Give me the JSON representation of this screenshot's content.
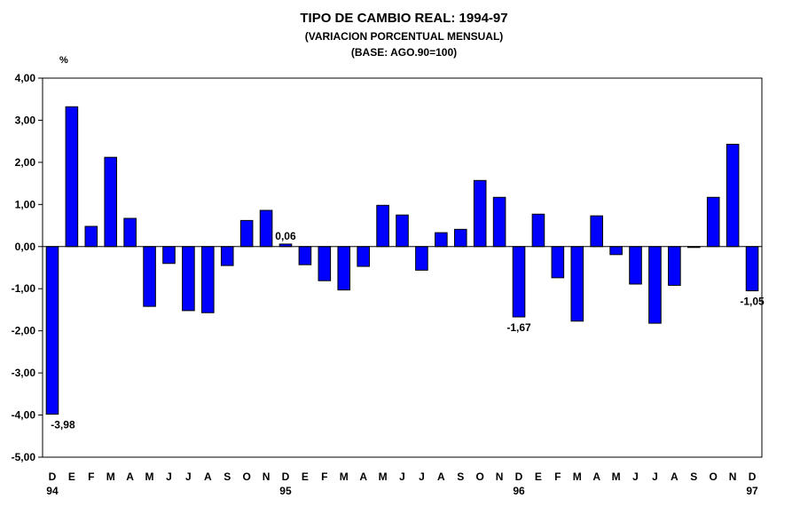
{
  "header": {
    "title": "TIPO DE CAMBIO REAL: 1994-97",
    "subtitle": "(VARIACION PORCENTUAL MENSUAL)",
    "base_note": "(BASE: AGO.90=100)",
    "unit": "%"
  },
  "chart_data": {
    "type": "bar",
    "title": "TIPO DE CAMBIO REAL: 1994-97",
    "subtitle": "(VARIACION PORCENTUAL MENSUAL) (BASE: AGO.90=100)",
    "ylabel": "%",
    "ylim": [
      -5,
      4
    ],
    "yticks": [
      "4,00",
      "3,00",
      "2,00",
      "1,00",
      "0,00",
      "-1,00",
      "-2,00",
      "-3,00",
      "-4,00",
      "-5,00"
    ],
    "ytick_values": [
      4,
      3,
      2,
      1,
      0,
      -1,
      -2,
      -3,
      -4,
      -5
    ],
    "categories": [
      "D",
      "E",
      "F",
      "M",
      "A",
      "M",
      "J",
      "J",
      "A",
      "S",
      "O",
      "N",
      "D",
      "E",
      "F",
      "M",
      "A",
      "M",
      "J",
      "J",
      "A",
      "S",
      "O",
      "N",
      "D",
      "E",
      "F",
      "M",
      "A",
      "M",
      "J",
      "J",
      "A",
      "S",
      "O",
      "N",
      "D"
    ],
    "year_labels": [
      {
        "index": 0,
        "label": "94"
      },
      {
        "index": 12,
        "label": "95"
      },
      {
        "index": 24,
        "label": "96"
      },
      {
        "index": 36,
        "label": "97"
      }
    ],
    "values": [
      -3.98,
      3.32,
      0.48,
      2.12,
      0.67,
      -1.42,
      -0.4,
      -1.52,
      -1.57,
      -0.45,
      0.62,
      0.86,
      0.06,
      -0.43,
      -0.81,
      -1.03,
      -0.47,
      0.98,
      0.75,
      -0.56,
      0.33,
      0.41,
      1.57,
      1.17,
      -1.67,
      0.77,
      -0.74,
      -1.77,
      0.73,
      -0.19,
      -0.89,
      -1.82,
      -0.92,
      -0.02,
      1.17,
      2.43,
      -1.05
    ],
    "data_labels": [
      {
        "index": 0,
        "text": "-3,98"
      },
      {
        "index": 12,
        "text": "0,06"
      },
      {
        "index": 24,
        "text": "-1,67"
      },
      {
        "index": 36,
        "text": "-1,05"
      }
    ],
    "bar_color": "#0000ff",
    "grid": false,
    "legend": "none"
  }
}
